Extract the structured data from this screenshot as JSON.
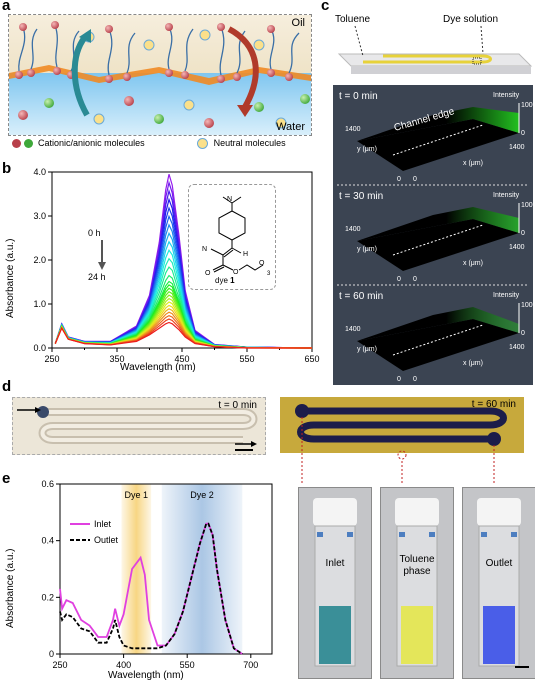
{
  "panels": {
    "a": "a",
    "b": "b",
    "c": "c",
    "d": "d",
    "e": "e"
  },
  "panel_a": {
    "oil": "Oil",
    "water": "Water",
    "legend_charged": "Cationic/anionic molecules",
    "legend_neutral": "Neutral molecules"
  },
  "panel_b": {
    "ylabel": "Absorbance (a.u.)",
    "xlabel": "Wavelength (nm)",
    "xticks": [
      "250",
      "350",
      "450",
      "550",
      "650"
    ],
    "xticks_minor": [
      "300",
      "400",
      "500",
      "600"
    ],
    "yticks": [
      "0.0",
      "1.0",
      "2.0",
      "3.0",
      "4.0"
    ],
    "time_start": "0 h",
    "time_end": "24 h",
    "dye_label": "dye ",
    "dye_number": "1",
    "struct_N": "N",
    "struct_H": "H",
    "struct_O1": "O",
    "struct_O2": "O",
    "struct_O3": "O",
    "struct_sub": "3",
    "struct_N2": "N"
  },
  "panel_c": {
    "toluene": "Toluene",
    "dye_solution": "Dye solution",
    "times": [
      "t = 0 min",
      "t = 30 min",
      "t = 60 min"
    ],
    "intensity": "Intensity",
    "z100": "100",
    "z0": "0",
    "y_label": "y (μm)",
    "x_label": "x (μm)",
    "y1400": "1400",
    "x1400": "1400",
    "origin": "0",
    "origin2": "0",
    "channel_edge": "Channel edge"
  },
  "panel_d": {
    "t0": "t = 0 min",
    "t60": "t = 60 min"
  },
  "panel_e": {
    "ylabel": "Absorbance (a.u.)",
    "xlabel": "Wavelength (nm)",
    "xticks": [
      "250",
      "400",
      "550",
      "700"
    ],
    "yticks": [
      "0",
      "0.2",
      "0.4",
      "0.6"
    ],
    "dye1": "Dye 1",
    "dye2": "Dye 2",
    "legend_inlet": "Inlet",
    "legend_outlet": "Outlet",
    "vials": [
      "Inlet",
      "Toluene\nphase",
      "Outlet"
    ],
    "vial1": "Inlet",
    "vial2a": "Toluene",
    "vial2b": "phase",
    "vial3": "Outlet"
  },
  "chart_data": [
    {
      "type": "line",
      "ylabel": "Absorbance (a.u.)",
      "xlabel": "Wavelength (nm)",
      "xlim": [
        250,
        650
      ],
      "ylim": [
        0,
        4.0
      ],
      "note_series": "time series from 0 h (violet, highest) to 24 h (red, lowest)",
      "peak_wavelength": 430,
      "series": [
        {
          "x": [
            255,
            265,
            275,
            300,
            340,
            380,
            400,
            415,
            425,
            430,
            435,
            445,
            455,
            470,
            500,
            550,
            650
          ],
          "y": [
            0.1,
            0.55,
            0.25,
            0.15,
            0.15,
            0.5,
            1.2,
            2.4,
            3.6,
            3.95,
            3.7,
            2.6,
            1.3,
            0.4,
            0.08,
            0.02,
            0.0
          ]
        },
        {
          "x": [
            255,
            265,
            275,
            300,
            340,
            380,
            400,
            415,
            425,
            430,
            435,
            445,
            455,
            470,
            500,
            550,
            650
          ],
          "y": [
            0.1,
            0.5,
            0.22,
            0.12,
            0.1,
            0.3,
            0.65,
            1.1,
            1.45,
            1.55,
            1.5,
            1.1,
            0.6,
            0.2,
            0.05,
            0.01,
            0.0
          ]
        },
        {
          "x": [
            255,
            265,
            275,
            300,
            340,
            380,
            400,
            415,
            425,
            430,
            435,
            445,
            455,
            470,
            500,
            550,
            650
          ],
          "y": [
            0.1,
            0.45,
            0.2,
            0.1,
            0.07,
            0.15,
            0.3,
            0.45,
            0.55,
            0.58,
            0.55,
            0.42,
            0.25,
            0.1,
            0.03,
            0.0,
            0.0
          ]
        }
      ]
    },
    {
      "type": "line",
      "ylabel": "Absorbance (a.u.)",
      "xlabel": "Wavelength (nm)",
      "xlim": [
        250,
        750
      ],
      "ylim": [
        0,
        0.6
      ],
      "series": [
        {
          "name": "Inlet",
          "color": "#e040e0",
          "x": [
            250,
            255,
            265,
            280,
            300,
            320,
            340,
            360,
            375,
            380,
            390,
            400,
            420,
            440,
            450,
            460,
            480,
            500,
            520,
            540,
            560,
            580,
            595,
            600,
            610,
            620,
            640,
            660,
            680
          ],
          "y": [
            0.23,
            0.16,
            0.19,
            0.18,
            0.12,
            0.1,
            0.06,
            0.06,
            0.12,
            0.16,
            0.1,
            0.14,
            0.3,
            0.34,
            0.28,
            0.12,
            0.03,
            0.03,
            0.07,
            0.15,
            0.27,
            0.39,
            0.46,
            0.46,
            0.42,
            0.3,
            0.12,
            0.02,
            0.0
          ]
        },
        {
          "name": "Outlet",
          "color": "#000000",
          "x": [
            250,
            255,
            265,
            280,
            300,
            320,
            340,
            360,
            375,
            380,
            390,
            400,
            420,
            440,
            450,
            460,
            480,
            500,
            520,
            540,
            560,
            580,
            595,
            600,
            610,
            620,
            640,
            660,
            680
          ],
          "y": [
            0.15,
            0.12,
            0.14,
            0.13,
            0.09,
            0.08,
            0.04,
            0.04,
            0.09,
            0.12,
            0.06,
            0.03,
            0.02,
            0.02,
            0.02,
            0.02,
            0.02,
            0.03,
            0.07,
            0.15,
            0.27,
            0.39,
            0.46,
            0.46,
            0.42,
            0.3,
            0.12,
            0.02,
            0.0
          ]
        }
      ],
      "bands": [
        {
          "label": "Dye 1",
          "range": [
            395,
            465
          ],
          "color": "#f5c85a"
        },
        {
          "label": "Dye 2",
          "range": [
            490,
            680
          ],
          "color": "#8fb4dc"
        }
      ]
    }
  ]
}
